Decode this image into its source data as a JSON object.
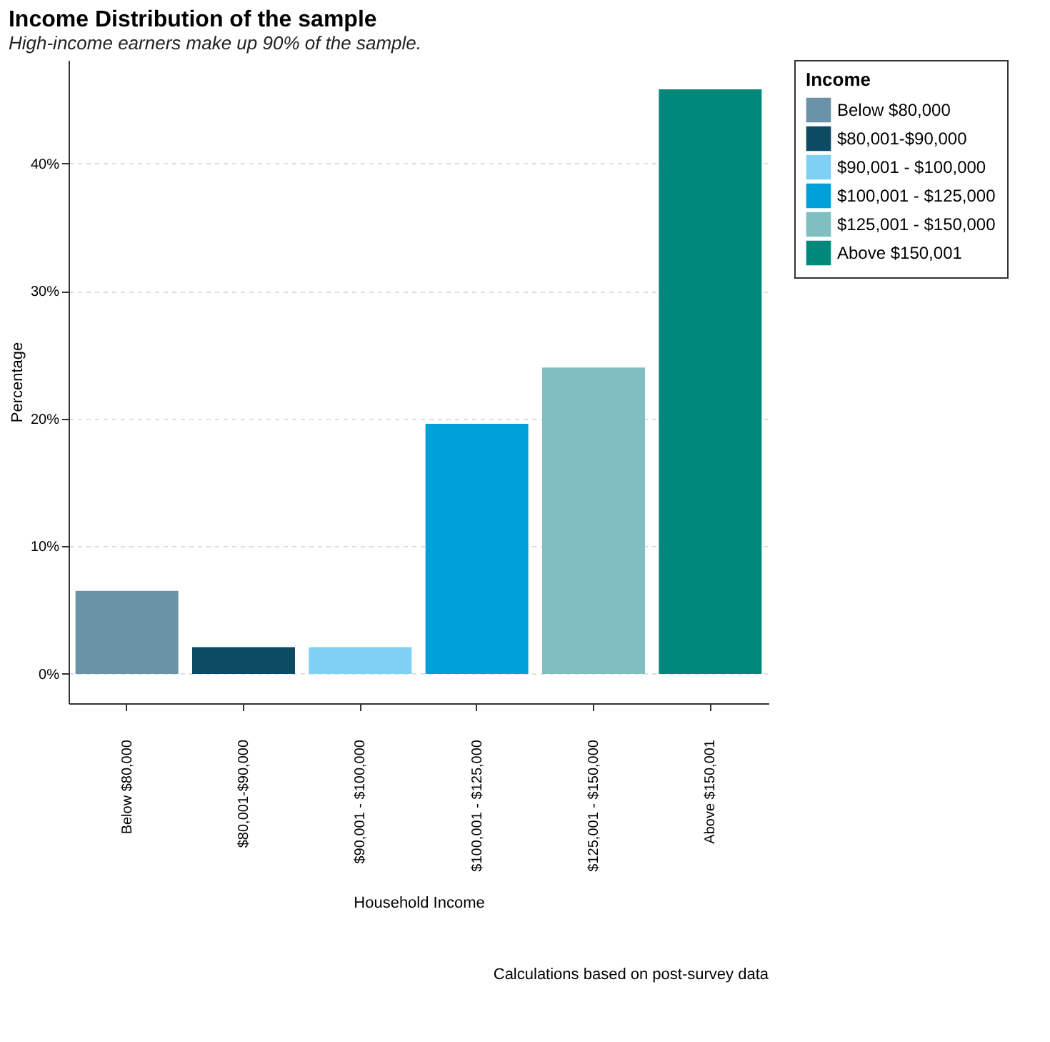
{
  "chart_data": {
    "type": "bar",
    "title": "Income Distribution of the sample",
    "subtitle": "High-income earners make up 90% of the sample.",
    "xlabel": "Household Income",
    "ylabel": "Percentage",
    "legend_title": "Income",
    "categories": [
      "Below $80,000",
      "$80,001-$90,000",
      "$90,001 - $100,000",
      "$100,001 - $125,000",
      "$125,001 - $150,000",
      "Above $150,001"
    ],
    "series": [
      {
        "name": "Below $80,000",
        "color": "#6a93a8",
        "values": [
          6.5,
          null,
          null,
          null,
          null,
          null
        ]
      },
      {
        "name": "$80,001-$90,000",
        "color": "#0d4a63",
        "values": [
          null,
          2.1,
          null,
          null,
          null,
          null
        ]
      },
      {
        "name": "$90,001 - $100,000",
        "color": "#7fd0f5",
        "values": [
          null,
          null,
          2.1,
          null,
          null,
          null
        ]
      },
      {
        "name": "$100,001 - $125,000",
        "color": "#00a0d8",
        "values": [
          null,
          null,
          null,
          19.6,
          null,
          null
        ]
      },
      {
        "name": "$125,001 - $150,000",
        "color": "#7fbfc2",
        "values": [
          null,
          null,
          null,
          null,
          24.0,
          null
        ]
      },
      {
        "name": "Above $150,001",
        "color": "#00897b",
        "values": [
          null,
          null,
          null,
          null,
          null,
          45.8
        ]
      }
    ],
    "stacked": true,
    "ylim": [
      -2.3,
      48.1
    ],
    "yticks": [
      {
        "value": 0,
        "label": "0%"
      },
      {
        "value": 10,
        "label": "10%"
      },
      {
        "value": 20,
        "label": "20%"
      },
      {
        "value": 30,
        "label": "30%"
      },
      {
        "value": 40,
        "label": "40%"
      }
    ],
    "grid": "y",
    "legend": "right",
    "annotations": [
      "Calculations based on post-survey data"
    ]
  }
}
